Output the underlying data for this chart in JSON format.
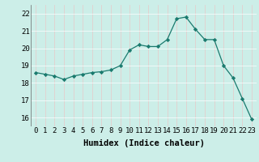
{
  "x": [
    0,
    1,
    2,
    3,
    4,
    5,
    6,
    7,
    8,
    9,
    10,
    11,
    12,
    13,
    14,
    15,
    16,
    17,
    18,
    19,
    20,
    21,
    22,
    23
  ],
  "y": [
    18.6,
    18.5,
    18.4,
    18.2,
    18.4,
    18.5,
    18.6,
    18.65,
    18.75,
    19.0,
    19.9,
    20.2,
    20.1,
    20.1,
    20.5,
    21.7,
    21.8,
    21.1,
    20.5,
    20.5,
    19.0,
    18.3,
    17.1,
    15.9
  ],
  "xlabel": "Humidex (Indice chaleur)",
  "ylim": [
    15.5,
    22.5
  ],
  "xlim": [
    -0.5,
    23.5
  ],
  "yticks": [
    16,
    17,
    18,
    19,
    20,
    21,
    22
  ],
  "xticks": [
    0,
    1,
    2,
    3,
    4,
    5,
    6,
    7,
    8,
    9,
    10,
    11,
    12,
    13,
    14,
    15,
    16,
    17,
    18,
    19,
    20,
    21,
    22,
    23
  ],
  "line_color": "#1a7a6e",
  "marker": "D",
  "marker_size": 2.2,
  "bg_color": "#cceee8",
  "grid_color": "#f0f0f0",
  "xlabel_fontsize": 7.5,
  "tick_fontsize": 6.5
}
